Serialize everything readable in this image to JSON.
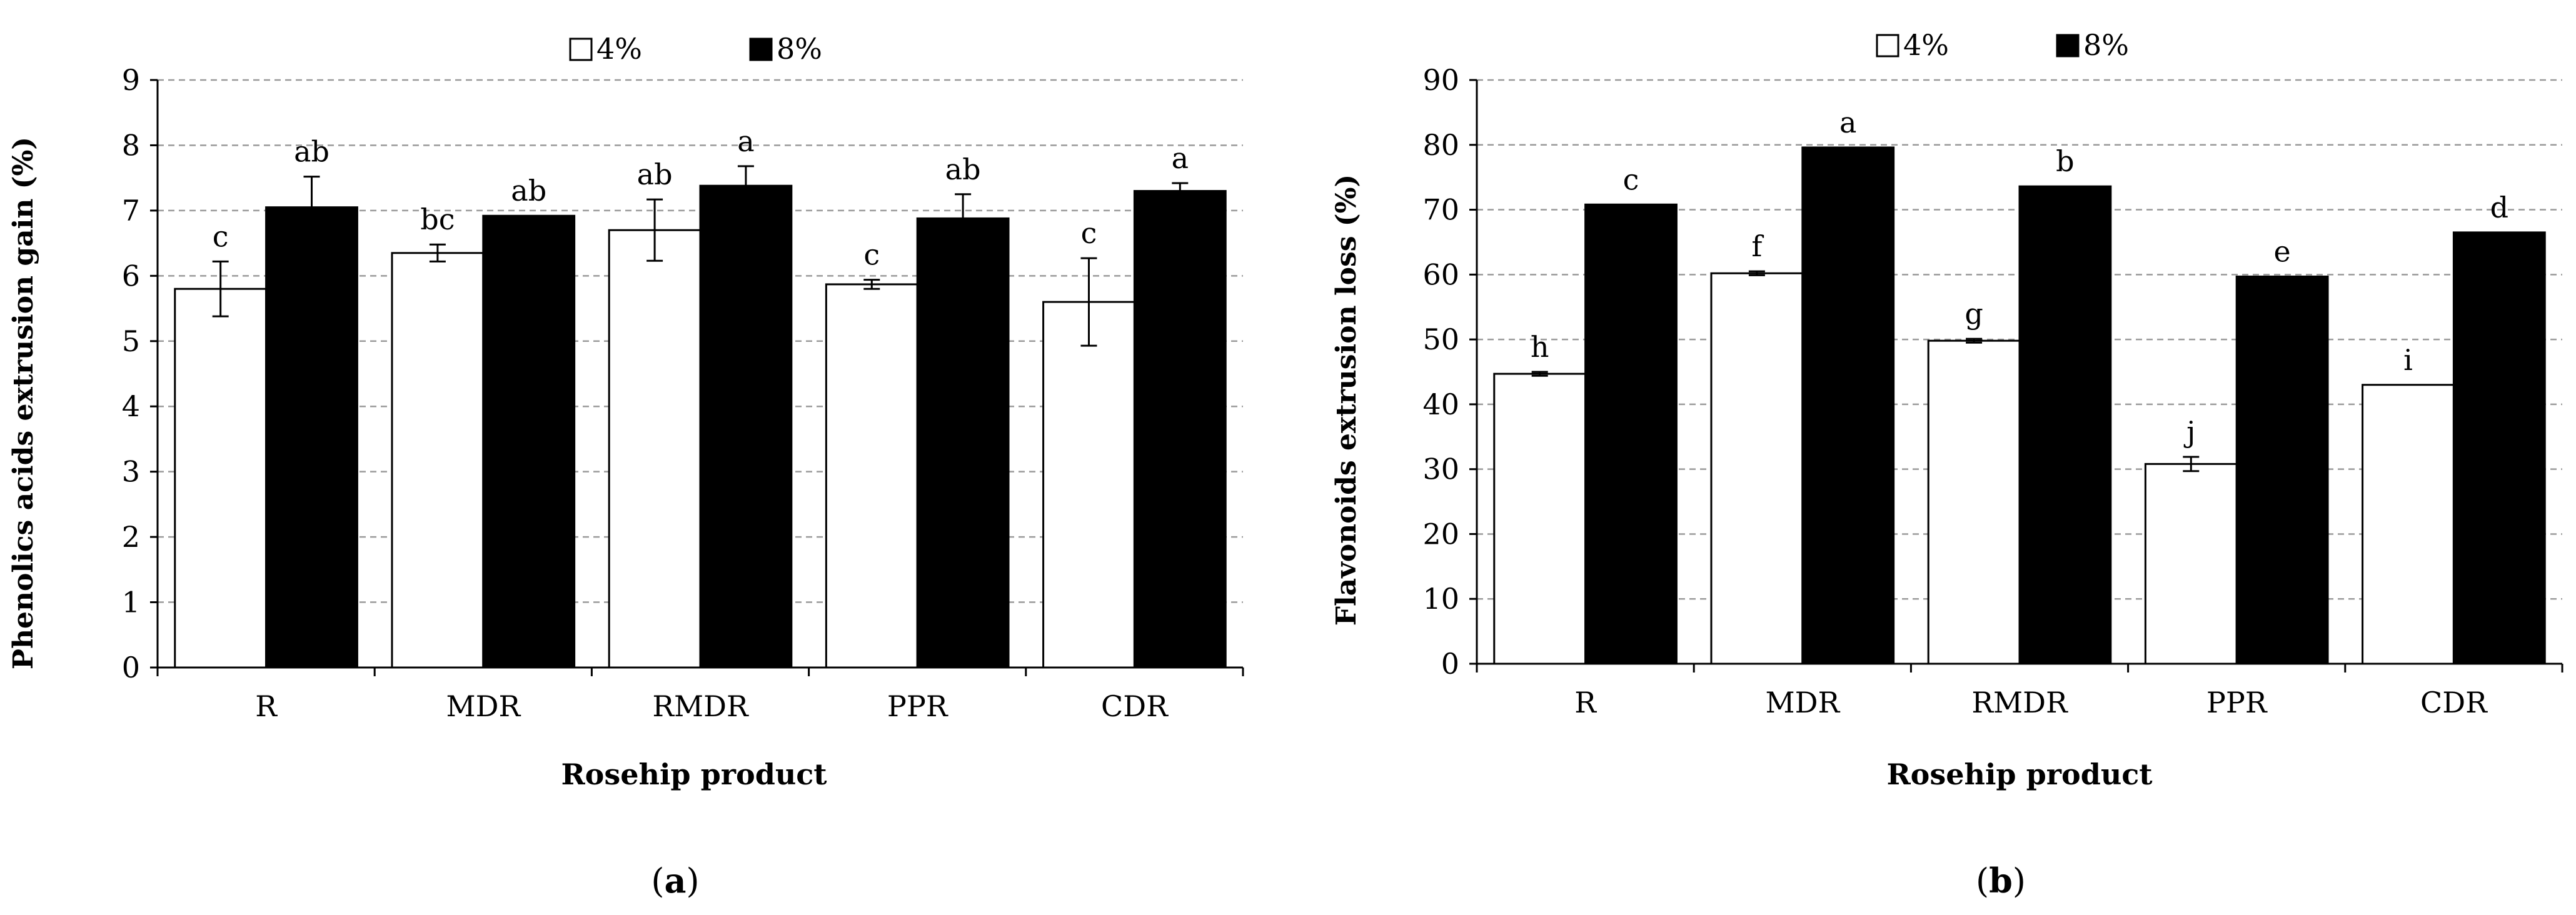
{
  "chart_data": [
    {
      "type": "bar",
      "panel_label": "a",
      "xlabel": "Rosehip product",
      "ylabel": "Phenolics acids  extrusion gain (%)",
      "categories": [
        "R",
        "MDR",
        "RMDR",
        "PPR",
        "CDR"
      ],
      "ylim": [
        0,
        9
      ],
      "yticks": [
        0,
        1,
        2,
        3,
        4,
        5,
        6,
        7,
        8,
        9
      ],
      "grid": true,
      "legend_position": "top",
      "series": [
        {
          "name": "4%",
          "color": "#ffffff",
          "values": [
            5.8,
            6.35,
            6.7,
            5.87,
            5.6
          ],
          "errors": [
            0.42,
            0.13,
            0.47,
            0.07,
            0.67
          ],
          "labels": [
            "c",
            "bc",
            "ab",
            "c",
            "c"
          ]
        },
        {
          "name": "8%",
          "color": "#000000",
          "values": [
            7.05,
            6.92,
            7.38,
            6.88,
            7.3
          ],
          "errors": [
            0.47,
            0.0,
            0.3,
            0.37,
            0.12
          ],
          "labels": [
            "ab",
            "ab",
            "a",
            "ab",
            "a"
          ]
        }
      ]
    },
    {
      "type": "bar",
      "panel_label": "b",
      "xlabel": "Rosehip product",
      "ylabel": "Flavonoids extrusion loss (%)",
      "categories": [
        "R",
        "MDR",
        "RMDR",
        "PPR",
        "CDR"
      ],
      "ylim": [
        0,
        90
      ],
      "yticks": [
        0,
        10,
        20,
        30,
        40,
        50,
        60,
        70,
        80,
        90
      ],
      "grid": true,
      "legend_position": "top",
      "series": [
        {
          "name": "4%",
          "color": "#ffffff",
          "values": [
            44.7,
            60.2,
            49.8,
            30.8,
            43.0
          ],
          "errors": [
            0.3,
            0.3,
            0.3,
            1.1,
            0.0
          ],
          "labels": [
            "h",
            "f",
            "g",
            "j",
            "i"
          ]
        },
        {
          "name": "8%",
          "color": "#000000",
          "values": [
            70.8,
            79.6,
            73.6,
            59.7,
            66.5
          ],
          "errors": [
            0.0,
            0.0,
            0.0,
            0.0,
            0.0
          ],
          "labels": [
            "c",
            "a",
            "b",
            "e",
            "d"
          ]
        }
      ]
    }
  ]
}
